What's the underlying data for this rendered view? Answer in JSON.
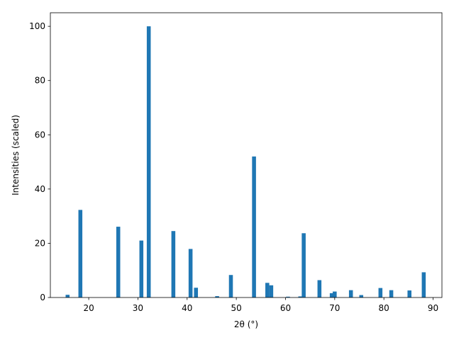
{
  "chart_data": {
    "type": "bar",
    "title": "",
    "xlabel": "2θ (°)",
    "ylabel": "Intensities (scaled)",
    "xlim": [
      12.2,
      91.8
    ],
    "ylim": [
      0,
      105
    ],
    "xticks": [
      20,
      30,
      40,
      50,
      60,
      70,
      80,
      90
    ],
    "yticks": [
      0,
      20,
      40,
      60,
      80,
      100
    ],
    "grid": false,
    "bar_color": "#1f77b4",
    "bar_width": 0.8,
    "points": [
      {
        "x": 15.7,
        "y": 1.0
      },
      {
        "x": 18.3,
        "y": 32.3
      },
      {
        "x": 26.0,
        "y": 26.1
      },
      {
        "x": 30.7,
        "y": 21.0
      },
      {
        "x": 32.2,
        "y": 100.0
      },
      {
        "x": 37.2,
        "y": 24.5
      },
      {
        "x": 40.7,
        "y": 17.9
      },
      {
        "x": 41.8,
        "y": 3.6
      },
      {
        "x": 46.1,
        "y": 0.5
      },
      {
        "x": 48.9,
        "y": 8.3
      },
      {
        "x": 53.6,
        "y": 52.0
      },
      {
        "x": 56.3,
        "y": 5.4
      },
      {
        "x": 57.1,
        "y": 4.5
      },
      {
        "x": 60.5,
        "y": 0.3
      },
      {
        "x": 63.0,
        "y": 0.4
      },
      {
        "x": 63.7,
        "y": 23.7
      },
      {
        "x": 66.9,
        "y": 6.4
      },
      {
        "x": 69.4,
        "y": 1.6
      },
      {
        "x": 70.0,
        "y": 2.2
      },
      {
        "x": 73.3,
        "y": 2.7
      },
      {
        "x": 75.4,
        "y": 0.9
      },
      {
        "x": 79.3,
        "y": 3.5
      },
      {
        "x": 81.5,
        "y": 2.7
      },
      {
        "x": 85.2,
        "y": 2.6
      },
      {
        "x": 88.1,
        "y": 9.3
      }
    ]
  }
}
